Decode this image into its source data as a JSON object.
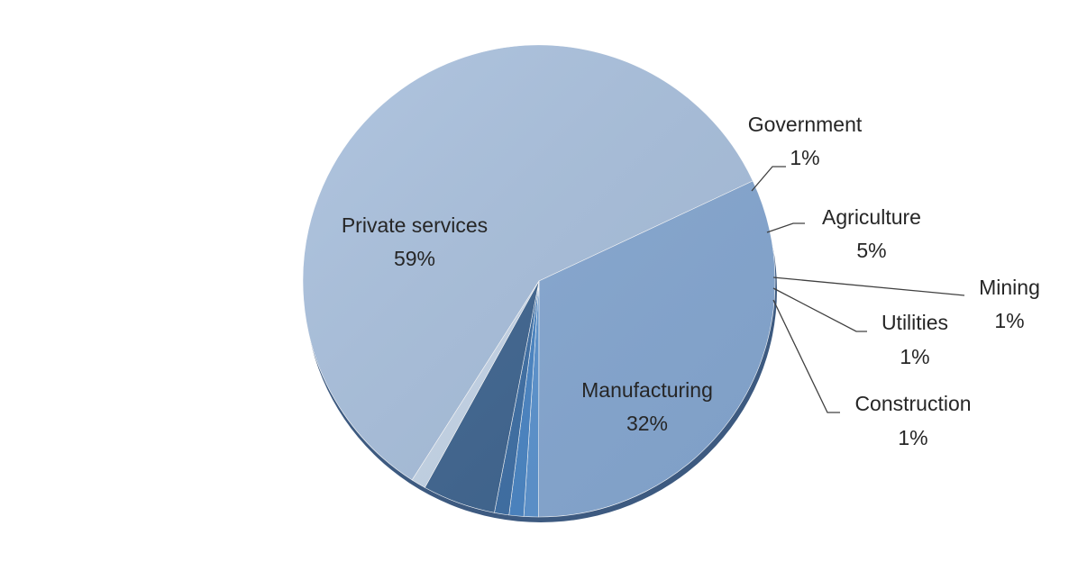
{
  "chart_data": {
    "type": "pie",
    "title": "",
    "slices": [
      {
        "label": "Private services",
        "value": 59,
        "value_label": "59%",
        "color": "#a8bfdc"
      },
      {
        "label": "Manufacturing",
        "value": 32,
        "value_label": "32%",
        "color": "#86a8d2"
      },
      {
        "label": "Construction",
        "value": 1,
        "value_label": "1%",
        "color": "#5b93cf"
      },
      {
        "label": "Utilities",
        "value": 1,
        "value_label": "1%",
        "color": "#4a85c4"
      },
      {
        "label": "Mining",
        "value": 1,
        "value_label": "1%",
        "color": "#3e6fa5"
      },
      {
        "label": "Agriculture",
        "value": 5,
        "value_label": "5%",
        "color": "#3f6590"
      },
      {
        "label": "Government",
        "value": 1,
        "value_label": "1%",
        "color": "#c5d5e8"
      }
    ],
    "legend": "none",
    "data_labels": "category and percentage"
  }
}
